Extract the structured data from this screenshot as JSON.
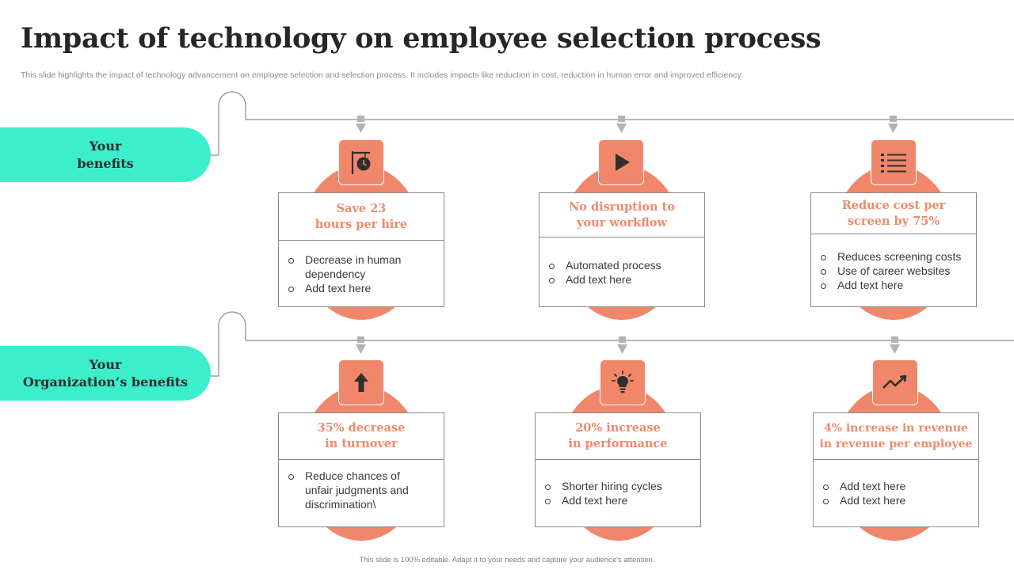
{
  "header": {
    "title": "Impact of technology on employee selection process",
    "subtitle": "This slide highlights the impact of technology advancement on employee selection  and selection process. It includes impacts like reduction in cost, reduction in human error and improved efficiency."
  },
  "rows": [
    {
      "label_lines": [
        "Your",
        "benefits"
      ],
      "cards": [
        {
          "icon": "signboard-clock-icon",
          "title_lines": [
            "Save 23",
            "hours per hire"
          ],
          "bullets": [
            [
              "Decrease in human",
              "dependency"
            ],
            [
              "Add text here"
            ]
          ]
        },
        {
          "icon": "play-icon",
          "title_lines": [
            "No disruption to",
            "your workflow"
          ],
          "bullets": [
            [
              "Automated process"
            ],
            [
              "Add text here"
            ]
          ]
        },
        {
          "icon": "list-icon",
          "title_lines": [
            "Reduce cost  per",
            "screen by 75%"
          ],
          "bullets": [
            [
              "Reduces screening costs"
            ],
            [
              "Use of career websites"
            ],
            [
              "Add text here"
            ]
          ]
        }
      ]
    },
    {
      "label_lines": [
        "Your",
        "Organization’s benefits"
      ],
      "cards": [
        {
          "icon": "arrow-up-icon",
          "title_lines": [
            "35% decrease",
            "in turnover"
          ],
          "bullets": [
            [
              "Reduce chances of",
              "unfair judgments and",
              "discrimination\\"
            ]
          ]
        },
        {
          "icon": "lightbulb-icon",
          "title_lines": [
            "20% increase",
            "in performance"
          ],
          "bullets": [
            [
              "Shorter hiring cycles"
            ],
            [
              "Add text here"
            ]
          ]
        },
        {
          "icon": "trend-up-icon",
          "title_lines": [
            "4% increase in revenue",
            "in revenue per employee"
          ],
          "bullets": [
            [
              "Add text here"
            ],
            [
              "Add text here"
            ]
          ]
        }
      ]
    }
  ],
  "footer": {
    "text": "This slide is 100% editable.  Adapt it to your needs and capture your audience's attention."
  },
  "colors": {
    "accent": "#f0876a",
    "teal": "#3ceecc",
    "heading": "#262626"
  }
}
